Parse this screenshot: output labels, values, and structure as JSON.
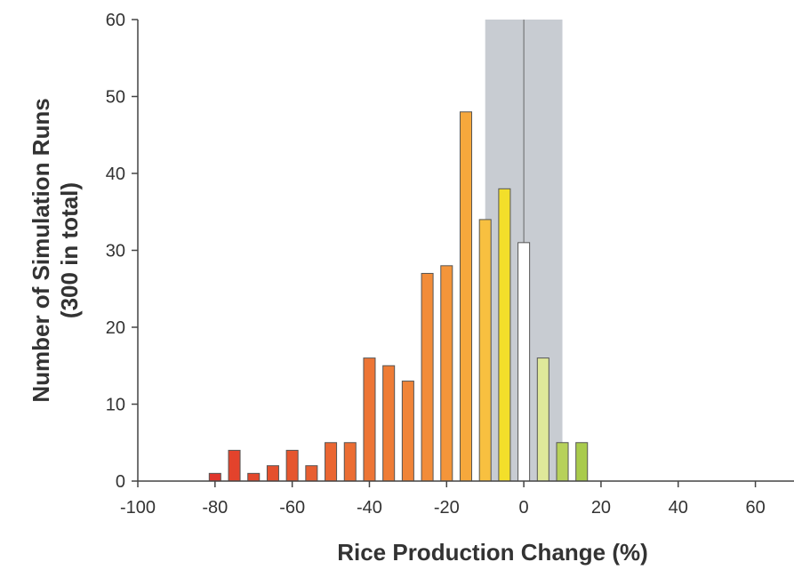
{
  "chart_data": {
    "type": "bar",
    "title": "",
    "xlabel": "Rice Production Change (%)",
    "ylabel_line1": "Number of Simulation Runs",
    "ylabel_line2": "(300 in total)",
    "xlim": [
      -100,
      70
    ],
    "ylim": [
      0,
      60
    ],
    "x_ticks": [
      -100,
      -80,
      -60,
      -40,
      -20,
      0,
      20,
      40,
      60
    ],
    "y_ticks": [
      0,
      10,
      20,
      30,
      40,
      50,
      60
    ],
    "shaded_band": {
      "from": -10,
      "to": 10,
      "color": "#c8ccd2"
    },
    "zero_line": true,
    "bar_width": 3,
    "bars": [
      {
        "x": -80,
        "value": 1,
        "color": "#e0352b"
      },
      {
        "x": -75,
        "value": 4,
        "color": "#e3432c"
      },
      {
        "x": -70,
        "value": 1,
        "color": "#e4482c"
      },
      {
        "x": -65,
        "value": 2,
        "color": "#e5502d"
      },
      {
        "x": -60,
        "value": 4,
        "color": "#e6562e"
      },
      {
        "x": -55,
        "value": 2,
        "color": "#e85e30"
      },
      {
        "x": -50,
        "value": 5,
        "color": "#ea6632"
      },
      {
        "x": -45,
        "value": 5,
        "color": "#eb6d33"
      },
      {
        "x": -40,
        "value": 16,
        "color": "#ed7535"
      },
      {
        "x": -35,
        "value": 15,
        "color": "#ee7c36"
      },
      {
        "x": -30,
        "value": 13,
        "color": "#f08438"
      },
      {
        "x": -25,
        "value": 27,
        "color": "#f28c39"
      },
      {
        "x": -20,
        "value": 28,
        "color": "#f4953a"
      },
      {
        "x": -15,
        "value": 48,
        "color": "#f6a83c"
      },
      {
        "x": -10,
        "value": 34,
        "color": "#f8c040"
      },
      {
        "x": -5,
        "value": 38,
        "color": "#f3df2a"
      },
      {
        "x": 0,
        "value": 31,
        "color": "#ffffff"
      },
      {
        "x": 5,
        "value": 16,
        "color": "#dfe89a"
      },
      {
        "x": 10,
        "value": 5,
        "color": "#b7d15a"
      },
      {
        "x": 15,
        "value": 5,
        "color": "#a9cb4c"
      }
    ]
  }
}
